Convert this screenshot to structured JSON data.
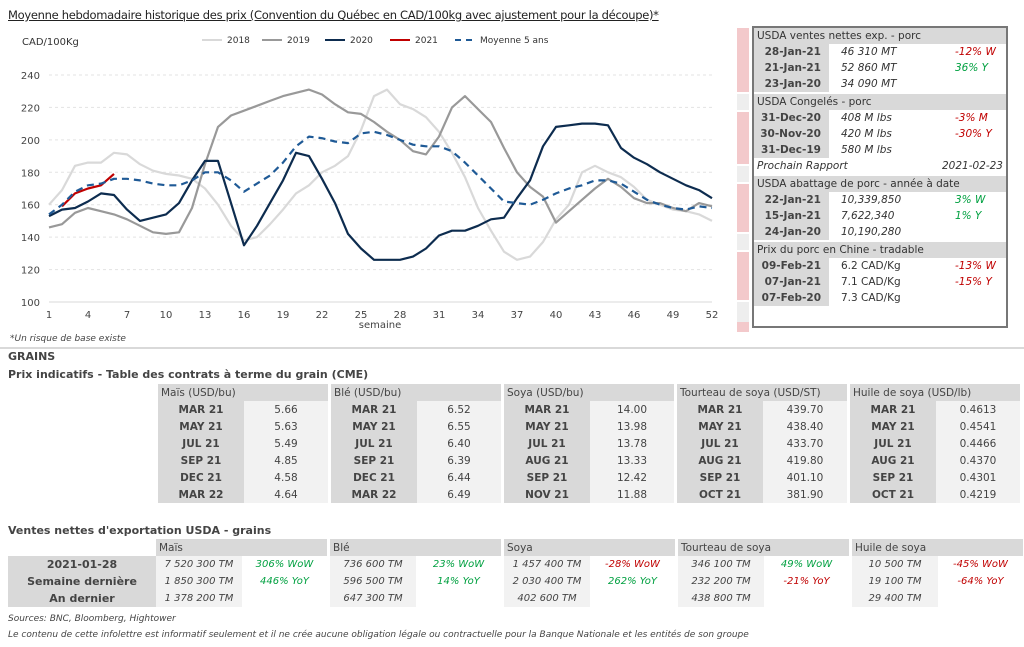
{
  "page_title": "Moyenne hebdomadaire historique des prix (Convention du Québec en CAD/100kg avec ajustement pour la découpe)*",
  "chart_data": {
    "type": "line",
    "title": "Moyenne hebdomadaire historique des prix (Convention du Québec en CAD/100kg avec ajustement pour la découpe)*",
    "ylabel": "CAD/100Kg",
    "xlabel": "semaine",
    "ylim": [
      100,
      240
    ],
    "xlim": [
      1,
      52
    ],
    "yticks": [
      100,
      120,
      140,
      160,
      180,
      200,
      220,
      240
    ],
    "xticks": [
      1,
      4,
      7,
      10,
      13,
      16,
      19,
      22,
      25,
      28,
      31,
      34,
      37,
      40,
      43,
      46,
      49,
      52
    ],
    "grid": true,
    "legend_position": "top",
    "series": [
      {
        "name": "2018",
        "color": "#d9d9d9",
        "dash": false,
        "values": [
          160,
          169,
          184,
          186,
          186,
          192,
          191,
          185,
          181,
          179,
          178,
          176,
          170,
          160,
          147,
          138,
          140,
          148,
          157,
          167,
          172,
          180,
          184,
          190,
          206,
          227,
          231,
          222,
          219,
          214,
          205,
          192,
          177,
          158,
          144,
          131,
          126,
          128,
          137,
          151,
          160,
          180,
          184,
          180,
          177,
          171,
          163,
          160,
          157,
          156,
          154,
          150
        ]
      },
      {
        "name": "2019",
        "color": "#999999",
        "dash": false,
        "values": [
          146,
          148,
          155,
          158,
          156,
          154,
          151,
          147,
          143,
          142,
          143,
          158,
          185,
          208,
          215,
          218,
          221,
          224,
          227,
          229,
          231,
          228,
          222,
          217,
          216,
          211,
          205,
          200,
          193,
          191,
          202,
          220,
          227,
          219,
          211,
          195,
          180,
          171,
          165,
          149,
          156,
          163,
          170,
          176,
          171,
          164,
          161,
          161,
          158,
          156,
          161,
          159
        ]
      },
      {
        "name": "2020",
        "color": "#0d2c4f",
        "dash": false,
        "values": [
          153,
          157,
          158,
          162,
          167,
          166,
          157,
          150,
          152,
          154,
          161,
          175,
          187,
          187,
          161,
          135,
          147,
          161,
          175,
          192,
          190,
          176,
          161,
          142,
          133,
          126,
          126,
          126,
          128,
          133,
          141,
          144,
          144,
          147,
          151,
          152,
          164,
          175,
          196,
          208,
          209,
          210,
          210,
          209,
          195,
          189,
          185,
          180,
          176,
          172,
          169,
          164
        ]
      },
      {
        "name": "2021",
        "color": "#c00000",
        "dash": false,
        "values": [
          null,
          159,
          167,
          170,
          172,
          179
        ]
      },
      {
        "name": "Moyenne 5 ans",
        "color": "#1f5a96",
        "dash": true,
        "values": [
          154,
          160,
          168,
          172,
          173,
          176,
          176,
          175,
          173,
          172,
          172,
          175,
          180,
          180,
          175,
          168,
          173,
          178,
          186,
          196,
          202,
          201,
          199,
          198,
          204,
          205,
          203,
          200,
          197,
          196,
          196,
          193,
          186,
          178,
          170,
          162,
          161,
          160,
          163,
          167,
          170,
          172,
          175,
          175,
          173,
          168,
          163,
          160,
          158,
          157,
          159,
          158
        ]
      }
    ]
  },
  "usda_panel": {
    "sections": [
      {
        "title": "USDA ventes nettes exp. - porc",
        "rows": [
          {
            "date": "28-Jan-21",
            "value": "46 310  MT",
            "change": "-12% W",
            "change_color": "red"
          },
          {
            "date": "21-Jan-21",
            "value": "52 860  MT",
            "change": "36% Y",
            "change_color": "green"
          },
          {
            "date": "23-Jan-20",
            "value": "34 090  MT",
            "change": "",
            "change_color": ""
          }
        ]
      },
      {
        "title": "USDA Congelés - porc",
        "rows": [
          {
            "date": "31-Dec-20",
            "value": "408 M lbs",
            "change": "-3% M",
            "change_color": "red"
          },
          {
            "date": "30-Nov-20",
            "value": "420 M lbs",
            "change": "-30% Y",
            "change_color": "red"
          },
          {
            "date": "31-Dec-19",
            "value": "580 M lbs",
            "change": "",
            "change_color": ""
          }
        ],
        "next_report_label": "Prochain Rapport",
        "next_report_date": "2021-02-23"
      },
      {
        "title": "USDA abattage de porc - année à date",
        "rows": [
          {
            "date": "22-Jan-21",
            "value": "10,339,850",
            "change": "3% W",
            "change_color": "green"
          },
          {
            "date": "15-Jan-21",
            "value": "7,622,340",
            "change": "1% Y",
            "change_color": "green"
          },
          {
            "date": "24-Jan-20",
            "value": "10,190,280",
            "change": "",
            "change_color": ""
          }
        ]
      },
      {
        "title": "Prix du porc en Chine - tradable",
        "rows": [
          {
            "date": "09-Feb-21",
            "value": "6.2 CAD/Kg",
            "change": "-13% W",
            "change_color": "red"
          },
          {
            "date": "07-Jan-21",
            "value": "7.1 CAD/Kg",
            "change": "-15% Y",
            "change_color": "red"
          },
          {
            "date": "07-Feb-20",
            "value": "7.3 CAD/Kg",
            "change": "",
            "change_color": ""
          }
        ]
      }
    ]
  },
  "footnote": "*Un risque de base existe",
  "grains_heading": "GRAINS",
  "futures": {
    "heading": "Prix indicatifs - Table des contrats à terme du grain (CME)",
    "groups": [
      {
        "name": "Maïs (USD/bu)",
        "rows": [
          [
            "MAR 21",
            "5.66"
          ],
          [
            "MAY 21",
            "5.63"
          ],
          [
            "JUL 21",
            "5.49"
          ],
          [
            "SEP 21",
            "4.85"
          ],
          [
            "DEC 21",
            "4.58"
          ],
          [
            "MAR 22",
            "4.64"
          ]
        ]
      },
      {
        "name": "Blé (USD/bu)",
        "rows": [
          [
            "MAR 21",
            "6.52"
          ],
          [
            "MAY 21",
            "6.55"
          ],
          [
            "JUL 21",
            "6.40"
          ],
          [
            "SEP 21",
            "6.39"
          ],
          [
            "DEC 21",
            "6.44"
          ],
          [
            "MAR 22",
            "6.49"
          ]
        ]
      },
      {
        "name": "Soya (USD/bu)",
        "rows": [
          [
            "MAR 21",
            "14.00"
          ],
          [
            "MAY 21",
            "13.98"
          ],
          [
            "JUL 21",
            "13.78"
          ],
          [
            "AUG 21",
            "13.33"
          ],
          [
            "SEP 21",
            "12.42"
          ],
          [
            "NOV 21",
            "11.88"
          ]
        ]
      },
      {
        "name": "Tourteau de soya (USD/ST)",
        "rows": [
          [
            "MAR 21",
            "439.70"
          ],
          [
            "MAY 21",
            "438.40"
          ],
          [
            "JUL 21",
            "433.70"
          ],
          [
            "AUG 21",
            "419.80"
          ],
          [
            "SEP 21",
            "401.10"
          ],
          [
            "OCT 21",
            "381.90"
          ]
        ]
      },
      {
        "name": "Huile de soya (USD/lb)",
        "rows": [
          [
            "MAR 21",
            "0.4613"
          ],
          [
            "MAY 21",
            "0.4541"
          ],
          [
            "JUL 21",
            "0.4466"
          ],
          [
            "AUG 21",
            "0.4370"
          ],
          [
            "SEP 21",
            "0.4301"
          ],
          [
            "OCT 21",
            "0.4219"
          ]
        ]
      }
    ]
  },
  "exports": {
    "heading": "Ventes nettes d'exportation USDA - grains",
    "row_labels": [
      "2021-01-28",
      "Semaine dernière",
      "An dernier"
    ],
    "groups": [
      {
        "name": "Maïs",
        "values": [
          "7 520 300 TM",
          "1 850 300 TM",
          "1 378 200 TM"
        ],
        "changes": [
          {
            "text": "306% WoW",
            "color": "green"
          },
          {
            "text": "446% YoY",
            "color": "green"
          },
          {
            "text": "",
            "color": ""
          }
        ]
      },
      {
        "name": "Blé",
        "values": [
          "736 600 TM",
          "596 500 TM",
          "647 300 TM"
        ],
        "changes": [
          {
            "text": "23% WoW",
            "color": "green"
          },
          {
            "text": "14% YoY",
            "color": "green"
          },
          {
            "text": "",
            "color": ""
          }
        ]
      },
      {
        "name": "Soya",
        "values": [
          "1 457 400 TM",
          "2 030 400 TM",
          "402 600 TM"
        ],
        "changes": [
          {
            "text": "-28% WoW",
            "color": "red"
          },
          {
            "text": "262% YoY",
            "color": "green"
          },
          {
            "text": "",
            "color": ""
          }
        ]
      },
      {
        "name": "Tourteau de soya",
        "values": [
          "346 100 TM",
          "232 200 TM",
          "438 800 TM"
        ],
        "changes": [
          {
            "text": "49% WoW",
            "color": "green"
          },
          {
            "text": "-21% YoY",
            "color": "red"
          },
          {
            "text": "",
            "color": ""
          }
        ]
      },
      {
        "name": "Huile de soya",
        "values": [
          "10 500 TM",
          "19 100 TM",
          "29 400 TM"
        ],
        "changes": [
          {
            "text": "-45% WoW",
            "color": "red"
          },
          {
            "text": "-64% YoY",
            "color": "red"
          },
          {
            "text": "",
            "color": ""
          }
        ]
      }
    ]
  },
  "sources": "Sources: BNC, Bloomberg, Hightower",
  "disclaimer": "Le contenu de cette infolettre est informatif seulement et il ne crée aucune obligation légale ou contractuelle pour la Banque Nationale et les entités de son groupe"
}
